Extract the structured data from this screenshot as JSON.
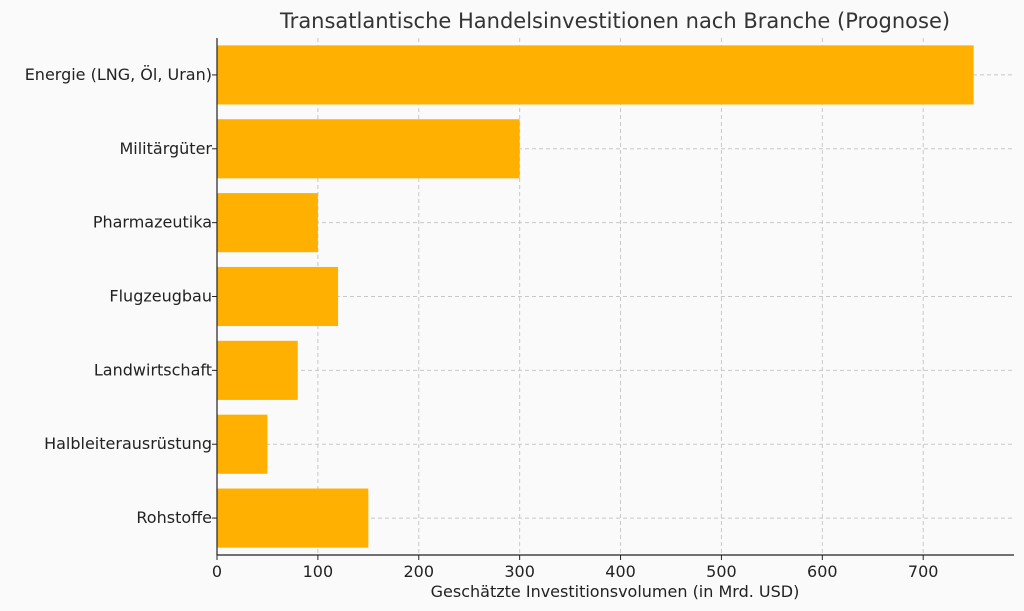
{
  "chart_data": {
    "type": "bar",
    "orientation": "horizontal",
    "title": "Transatlantische Handelsinvestitionen nach Branche (Prognose)",
    "xlabel": "Geschätzte Investitionsvolumen (in Mrd. USD)",
    "ylabel": "",
    "categories": [
      "Energie (LNG, Öl, Uran)",
      "Militärgüter",
      "Pharmazeutika",
      "Flugzeugbau",
      "Landwirtschaft",
      "Halbleiterausrüstung",
      "Rohstoffe"
    ],
    "values": [
      750,
      300,
      100,
      120,
      80,
      50,
      150
    ],
    "xlim": [
      0,
      790
    ],
    "xticks": [
      0,
      100,
      200,
      300,
      400,
      500,
      600,
      700
    ],
    "grid": true,
    "bar_color": "#FFB000"
  }
}
